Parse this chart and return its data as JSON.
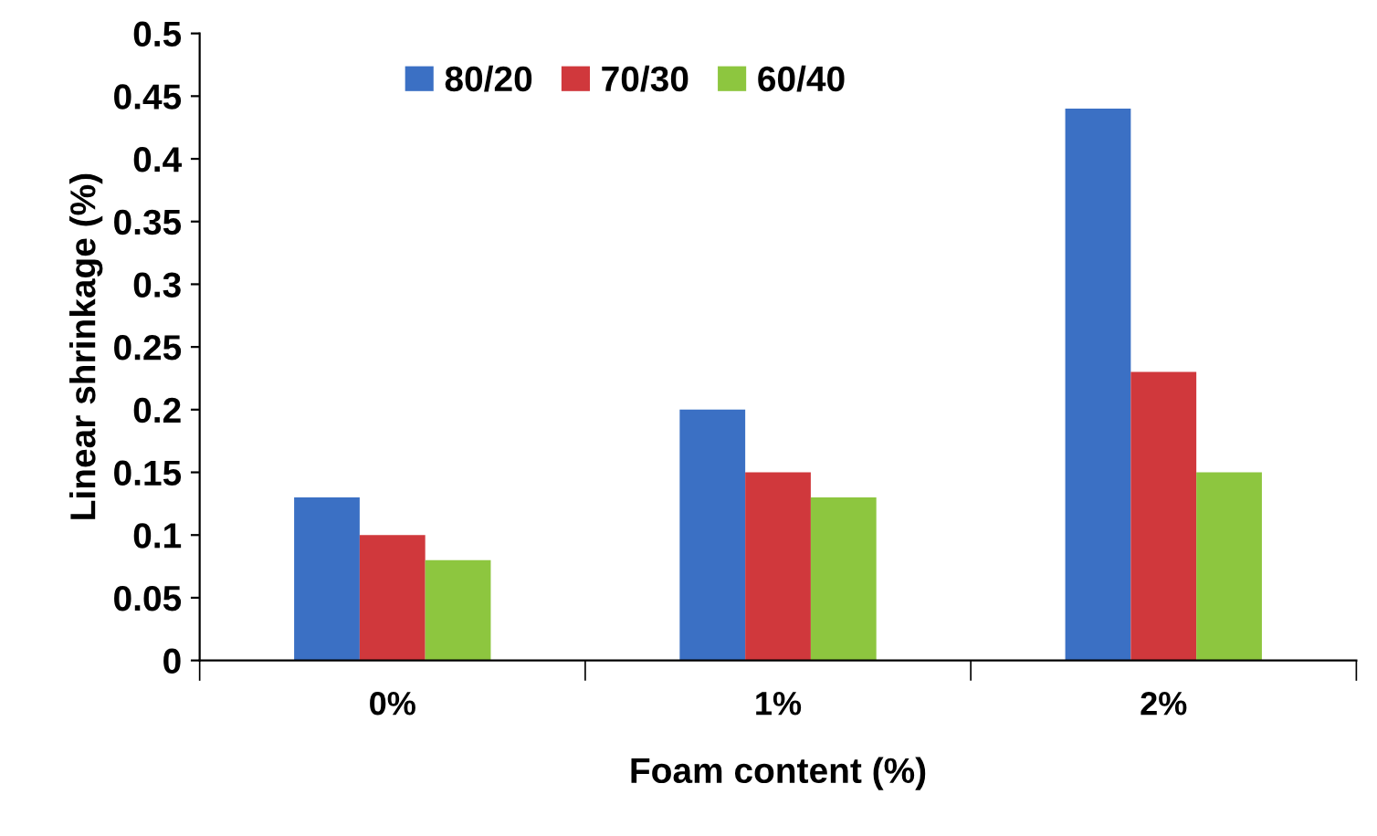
{
  "chart_data": {
    "type": "bar",
    "xlabel": "Foam content (%)",
    "ylabel": "Linear shrinkage (%)",
    "categories": [
      "0%",
      "1%",
      "2%"
    ],
    "series": [
      {
        "name": "80/20",
        "color": "#3b70c4",
        "values": [
          0.13,
          0.2,
          0.44
        ]
      },
      {
        "name": "70/30",
        "color": "#d0383c",
        "values": [
          0.1,
          0.15,
          0.23
        ]
      },
      {
        "name": "60/40",
        "color": "#8dc63f",
        "values": [
          0.08,
          0.13,
          0.15
        ]
      }
    ],
    "ylim": [
      0,
      0.5
    ],
    "yticks": [
      0,
      0.05,
      0.1,
      0.15,
      0.2,
      0.25,
      0.3,
      0.35,
      0.4,
      0.45,
      0.5
    ],
    "grid": false,
    "legend": "top left"
  }
}
